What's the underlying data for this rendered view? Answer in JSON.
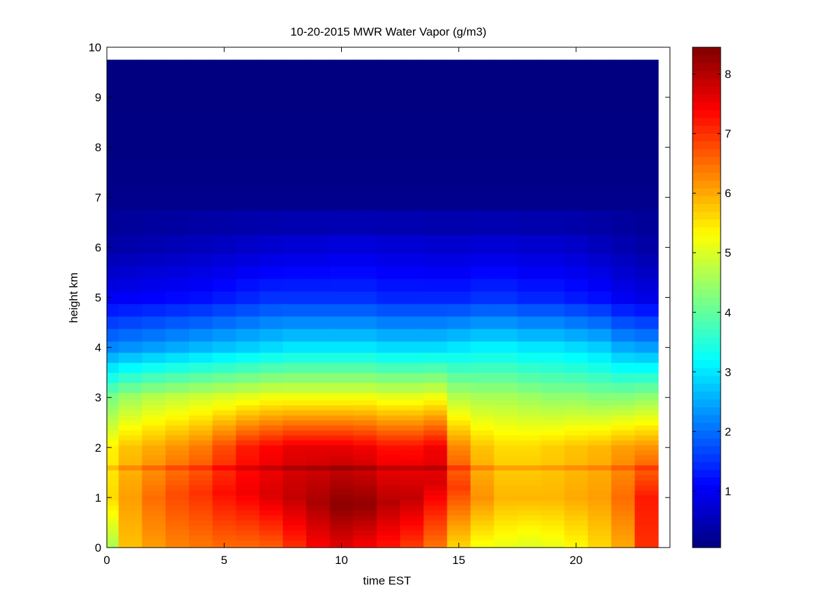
{
  "chart_data": {
    "type": "heatmap",
    "title": "10-20-2015 MWR Water Vapor (g/m3)",
    "xlabel": "time EST",
    "ylabel": "height km",
    "xlim": [
      0,
      24
    ],
    "ylim": [
      0,
      10
    ],
    "x_ticks": [
      0,
      5,
      10,
      15,
      20
    ],
    "y_ticks": [
      0,
      1,
      2,
      3,
      4,
      5,
      6,
      7,
      8,
      9,
      10
    ],
    "x_tick_labels": [
      "0",
      "5",
      "10",
      "15",
      "20"
    ],
    "y_tick_labels": [
      "0",
      "1",
      "2",
      "3",
      "4",
      "5",
      "6",
      "7",
      "8",
      "9",
      "10"
    ],
    "time_hours": [
      0,
      1,
      2,
      3,
      4,
      5,
      6,
      7,
      8,
      9,
      10,
      11,
      12,
      13,
      14,
      15,
      16,
      17,
      18,
      19,
      20,
      21,
      22,
      23
    ],
    "height_km": [
      0.0,
      0.1,
      0.2,
      0.3,
      0.4,
      0.5,
      0.6,
      0.7,
      0.8,
      0.9,
      1.0,
      1.1,
      1.2,
      1.3,
      1.4,
      1.5,
      1.6,
      1.7,
      1.8,
      1.9,
      2.0,
      2.1,
      2.2,
      2.3,
      2.4,
      2.5,
      2.6,
      2.7,
      2.8,
      2.9,
      3.0,
      3.2,
      3.4,
      3.6,
      3.8,
      4.0,
      4.25,
      4.5,
      4.75,
      5.0,
      5.25,
      5.5,
      5.75,
      6.0,
      6.5,
      7.0,
      7.5,
      8.0,
      8.5,
      9.0,
      9.5,
      9.75
    ],
    "surface_value": [
      4.6,
      5.8,
      6.1,
      6.3,
      6.4,
      6.5,
      6.5,
      6.6,
      7.0,
      7.4,
      7.6,
      7.4,
      7.2,
      6.9,
      6.4,
      5.6,
      5.2,
      5.1,
      5.0,
      5.1,
      5.3,
      5.6,
      6.0,
      7.0
    ],
    "peak_value": [
      5.6,
      6.1,
      6.5,
      6.8,
      7.0,
      7.3,
      7.5,
      7.7,
      7.9,
      8.1,
      8.35,
      8.3,
      8.0,
      7.9,
      7.7,
      6.9,
      6.2,
      5.9,
      5.9,
      5.9,
      6.0,
      6.1,
      6.5,
      7.2
    ],
    "peak_height_km": [
      1.0,
      1.0,
      1.0,
      1.05,
      1.1,
      1.1,
      1.1,
      1.05,
      1.0,
      0.9,
      0.85,
      0.85,
      0.9,
      1.0,
      1.3,
      1.2,
      1.0,
      1.0,
      1.0,
      1.0,
      1.0,
      1.0,
      1.0,
      1.0
    ],
    "height_2km_value": [
      5.4,
      5.8,
      6.0,
      6.2,
      6.4,
      6.8,
      7.2,
      7.4,
      7.6,
      7.6,
      7.6,
      7.5,
      7.3,
      7.3,
      7.5,
      6.3,
      5.8,
      5.6,
      5.6,
      5.7,
      5.8,
      5.9,
      6.1,
      6.2
    ],
    "height_3km_value": [
      4.2,
      4.5,
      4.7,
      4.8,
      4.9,
      5.0,
      5.1,
      5.2,
      5.2,
      5.2,
      5.2,
      5.2,
      5.1,
      5.1,
      5.2,
      4.7,
      4.6,
      4.6,
      4.5,
      4.4,
      4.4,
      4.3,
      4.3,
      4.4
    ],
    "height_4km_value": [
      2.2,
      2.3,
      2.4,
      2.5,
      2.6,
      2.7,
      2.8,
      2.9,
      3.0,
      3.0,
      3.0,
      3.0,
      2.9,
      2.9,
      2.9,
      3.0,
      3.1,
      3.1,
      3.0,
      3.0,
      2.9,
      2.8,
      2.5,
      2.4
    ],
    "height_5km_value": [
      1.0,
      1.05,
      1.1,
      1.15,
      1.2,
      1.3,
      1.4,
      1.5,
      1.5,
      1.5,
      1.5,
      1.5,
      1.4,
      1.4,
      1.4,
      1.4,
      1.5,
      1.5,
      1.4,
      1.4,
      1.3,
      1.2,
      1.0,
      0.9
    ],
    "height_6km_value": [
      0.35,
      0.4,
      0.45,
      0.5,
      0.55,
      0.6,
      0.65,
      0.7,
      0.75,
      0.75,
      0.8,
      0.8,
      0.75,
      0.75,
      0.7,
      0.7,
      0.75,
      0.75,
      0.7,
      0.7,
      0.65,
      0.55,
      0.45,
      0.35
    ],
    "inversion_layer_height_km": 1.6,
    "data_top_km": 9.75,
    "colorbar": {
      "colormap": "jet",
      "min": 0.05,
      "max": 8.45,
      "ticks": [
        1,
        2,
        3,
        4,
        5,
        6,
        7,
        8
      ],
      "tick_labels": [
        "1",
        "2",
        "3",
        "4",
        "5",
        "6",
        "7",
        "8"
      ]
    }
  }
}
